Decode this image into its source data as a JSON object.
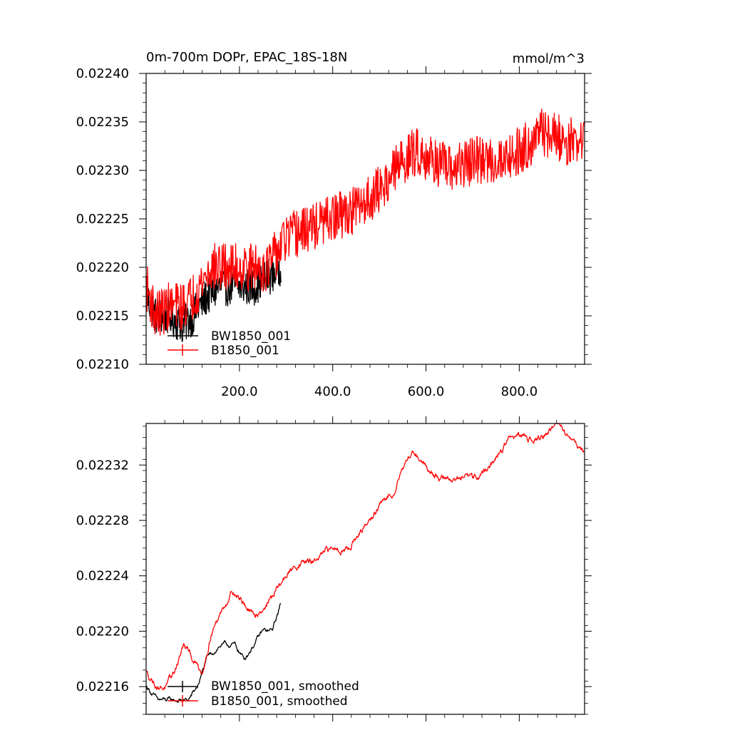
{
  "chart_data": [
    {
      "type": "line",
      "title": "0m-700m DOPr, EPAC_18S-18N",
      "units": "mmol/m^3",
      "xlim": [
        0,
        940
      ],
      "ylim": [
        0.0221,
        0.0224
      ],
      "x_ticks": [
        200,
        400,
        600,
        800
      ],
      "x_tick_labels": [
        "200.0",
        "400.0",
        "600.0",
        "800.0"
      ],
      "y_ticks": [
        0.0221,
        0.02215,
        0.0222,
        0.02225,
        0.0223,
        0.02235,
        0.0224
      ],
      "y_tick_labels": [
        "0.02210",
        "0.02215",
        "0.02220",
        "0.02225",
        "0.02230",
        "0.02235",
        "0.02240"
      ],
      "legend_position": "lower-left",
      "series": [
        {
          "name": "BW1850_001",
          "color": "#000000",
          "noise": 2e-05,
          "points": [
            [
              1,
              0.02217
            ],
            [
              20,
              0.02215
            ],
            [
              50,
              0.02215
            ],
            [
              80,
              0.02214
            ],
            [
              100,
              0.02215
            ],
            [
              130,
              0.02217
            ],
            [
              160,
              0.02218
            ],
            [
              200,
              0.02218
            ],
            [
              230,
              0.02218
            ],
            [
              260,
              0.02219
            ],
            [
              289,
              0.0222
            ]
          ]
        },
        {
          "name": "B1850_001",
          "color": "#ff0000",
          "noise": 2.5e-05,
          "points": [
            [
              1,
              0.02218
            ],
            [
              20,
              0.02215
            ],
            [
              50,
              0.02216
            ],
            [
              80,
              0.02216
            ],
            [
              100,
              0.02217
            ],
            [
              140,
              0.0222
            ],
            [
              180,
              0.0222
            ],
            [
              230,
              0.0222
            ],
            [
              260,
              0.0222
            ],
            [
              300,
              0.02223
            ],
            [
              350,
              0.02224
            ],
            [
              400,
              0.02225
            ],
            [
              450,
              0.02226
            ],
            [
              500,
              0.02228
            ],
            [
              550,
              0.02231
            ],
            [
              580,
              0.02232
            ],
            [
              620,
              0.02231
            ],
            [
              650,
              0.0223
            ],
            [
              700,
              0.02231
            ],
            [
              750,
              0.02231
            ],
            [
              800,
              0.02232
            ],
            [
              850,
              0.02234
            ],
            [
              900,
              0.02233
            ],
            [
              939,
              0.02233
            ]
          ]
        }
      ]
    },
    {
      "type": "line",
      "title": "",
      "xlim": [
        0,
        940
      ],
      "ylim": [
        0.02214,
        0.02235
      ],
      "x_ticks": [
        200,
        400,
        600,
        800
      ],
      "x_tick_labels": [
        "",
        "",
        "",
        ""
      ],
      "y_ticks": [
        0.02216,
        0.0222,
        0.02224,
        0.02228,
        0.02232
      ],
      "y_tick_labels": [
        "0.02216",
        "0.02220",
        "0.02224",
        "0.02228",
        "0.02232"
      ],
      "legend_position": "lower-left",
      "series": [
        {
          "name": "BW1850_001, smoothed",
          "color": "#000000",
          "noise": 3e-06,
          "points": [
            [
              1,
              0.02216
            ],
            [
              25,
              0.02215
            ],
            [
              45,
              0.02215
            ],
            [
              70,
              0.02215
            ],
            [
              90,
              0.02215
            ],
            [
              110,
              0.02216
            ],
            [
              130,
              0.02218
            ],
            [
              160,
              0.02219
            ],
            [
              190,
              0.02219
            ],
            [
              210,
              0.02218
            ],
            [
              230,
              0.02219
            ],
            [
              250,
              0.0222
            ],
            [
              270,
              0.0222
            ],
            [
              289,
              0.02222
            ]
          ]
        },
        {
          "name": "B1850_001, smoothed",
          "color": "#ff0000",
          "noise": 4e-06,
          "points": [
            [
              1,
              0.02217
            ],
            [
              25,
              0.02216
            ],
            [
              45,
              0.02216
            ],
            [
              60,
              0.02217
            ],
            [
              80,
              0.02219
            ],
            [
              100,
              0.02218
            ],
            [
              120,
              0.02217
            ],
            [
              140,
              0.0222
            ],
            [
              170,
              0.02222
            ],
            [
              185,
              0.02223
            ],
            [
              210,
              0.02222
            ],
            [
              230,
              0.02221
            ],
            [
              260,
              0.02222
            ],
            [
              280,
              0.02223
            ],
            [
              300,
              0.02224
            ],
            [
              330,
              0.02225
            ],
            [
              360,
              0.02225
            ],
            [
              400,
              0.02226
            ],
            [
              430,
              0.02226
            ],
            [
              460,
              0.02227
            ],
            [
              500,
              0.02229
            ],
            [
              530,
              0.0223
            ],
            [
              550,
              0.02232
            ],
            [
              575,
              0.02233
            ],
            [
              600,
              0.02232
            ],
            [
              630,
              0.02231
            ],
            [
              660,
              0.02231
            ],
            [
              700,
              0.02231
            ],
            [
              740,
              0.02232
            ],
            [
              780,
              0.02234
            ],
            [
              820,
              0.02234
            ],
            [
              850,
              0.02234
            ],
            [
              880,
              0.02235
            ],
            [
              910,
              0.02234
            ],
            [
              939,
              0.02233
            ]
          ]
        }
      ]
    }
  ]
}
